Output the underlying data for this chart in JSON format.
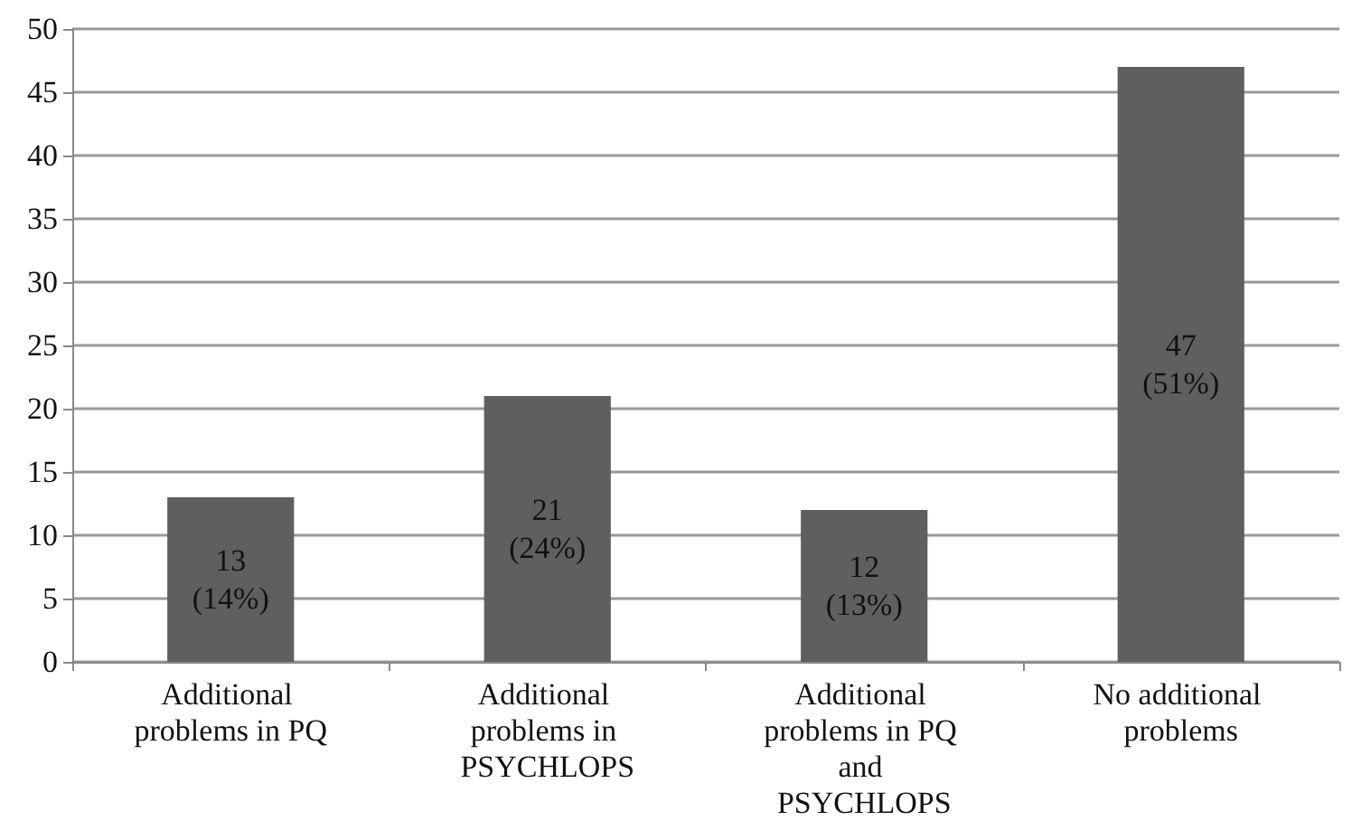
{
  "chart_data": {
    "type": "bar",
    "categories": [
      "Additional problems in PQ",
      "Additional problems in PSYCHLOPS",
      "Additional problems in PQ and PSYCHLOPS",
      "No additional problems"
    ],
    "values": [
      13,
      21,
      12,
      47
    ],
    "value_labels": [
      "13 (14%)",
      "21 (24%)",
      "12 (13%)",
      "47 (51%)"
    ],
    "color": "#5f5f5f",
    "ylim": [
      0,
      50
    ],
    "yticks": [
      0,
      5,
      10,
      15,
      20,
      25,
      30,
      35,
      40,
      45,
      50
    ],
    "grid": "y"
  }
}
